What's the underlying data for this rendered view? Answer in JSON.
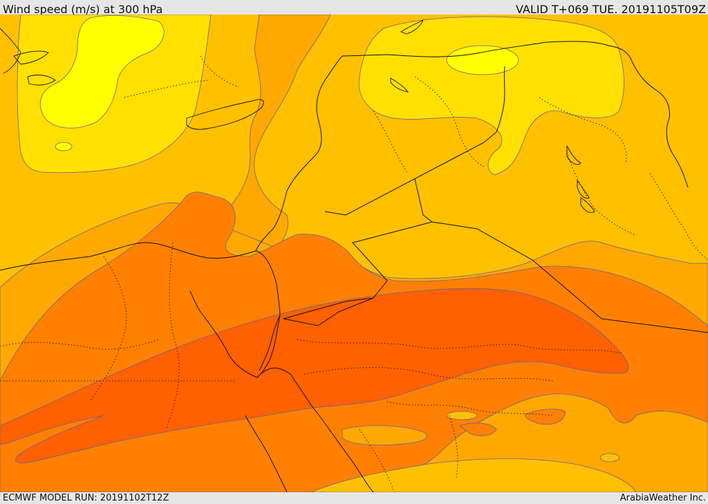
{
  "header": {
    "title": "Wind speed (m/s) at 300 hPa",
    "valid": "VALID T+069 TUE. 20191105T09Z"
  },
  "footer": {
    "model_run": "ECMWF MODEL RUN: 20191102T12Z",
    "credit": "ArabiaWeather Inc."
  },
  "palette": {
    "band_1": "#ffff00",
    "band_2": "#ffe000",
    "band_3": "#ffc000",
    "band_4": "#ffa800",
    "band_5": "#ff8000",
    "band_6": "#ff6000",
    "contour": "#6b6290",
    "border": "#111111"
  }
}
